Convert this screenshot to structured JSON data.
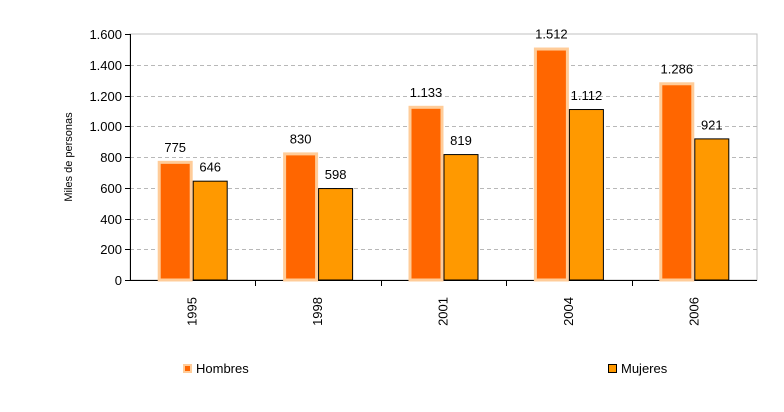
{
  "chart_data": {
    "type": "bar",
    "categories": [
      "1995",
      "1998",
      "2001",
      "2004",
      "2006"
    ],
    "series": [
      {
        "name": "Hombres",
        "values": [
          775,
          830,
          1133,
          1512,
          1286
        ],
        "labels": [
          "775",
          "830",
          "1.133",
          "1.512",
          "1.286"
        ],
        "color": "#ff6600",
        "border": "#ffcc99"
      },
      {
        "name": "Mujeres",
        "values": [
          646,
          598,
          819,
          1112,
          921
        ],
        "labels": [
          "646",
          "598",
          "819",
          "1.112",
          "921"
        ],
        "color": "#ff9900",
        "border": "#000000"
      }
    ],
    "ylabel": "Miles de personas",
    "xlabel": "",
    "ylim": [
      0,
      1600
    ],
    "yticks": [
      0,
      200,
      400,
      600,
      800,
      1000,
      1200,
      1400,
      1600
    ],
    "ytick_labels": [
      "0",
      "200",
      "400",
      "600",
      "800",
      "1.000",
      "1.200",
      "1.400",
      "1.600"
    ],
    "grid": true,
    "legend_position": "bottom"
  }
}
